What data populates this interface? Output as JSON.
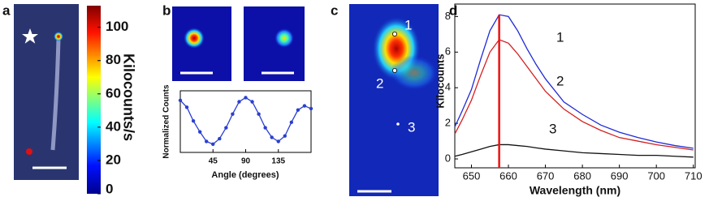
{
  "panel_labels": [
    "a",
    "b",
    "c",
    "d"
  ],
  "colorbar": {
    "label": "Kilocounts/s",
    "ylim": [
      0,
      113
    ],
    "yticks": [
      0,
      20,
      40,
      60,
      80,
      100
    ]
  },
  "panel_c_labels": [
    "1",
    "2",
    "3"
  ],
  "chart_data": [
    {
      "type": "line",
      "xlabel": "Angle (degrees)",
      "ylabel": "Normalized Counts",
      "x": [
        0,
        9,
        18,
        27,
        36,
        45,
        54,
        63,
        72,
        81,
        90,
        99,
        108,
        117,
        126,
        135,
        144,
        153,
        162,
        171,
        180
      ],
      "series": [
        {
          "color": "#2a3fd0",
          "values": [
            0.98,
            0.93,
            0.83,
            0.75,
            0.68,
            0.66,
            0.7,
            0.78,
            0.88,
            0.97,
            1.0,
            0.97,
            0.88,
            0.78,
            0.71,
            0.68,
            0.72,
            0.82,
            0.91,
            0.94,
            0.92
          ]
        }
      ],
      "xlim": [
        0,
        180
      ],
      "xticks": [
        45,
        90,
        135
      ],
      "ylim": [
        0.6,
        1.05
      ],
      "markers": true
    },
    {
      "type": "line",
      "xlabel": "Wavelength (nm)",
      "ylabel": "Kilocounts",
      "x": [
        645.5,
        647.5,
        650,
        652.5,
        655,
        657.5,
        660,
        662.5,
        665,
        667.5,
        670,
        675,
        680,
        685,
        690,
        695,
        700,
        705,
        710
      ],
      "series": [
        {
          "name": "1",
          "color": "#1f2bd6",
          "values": [
            1.8,
            2.7,
            3.9,
            5.6,
            7.2,
            8.1,
            8.0,
            7.2,
            6.2,
            5.3,
            4.5,
            3.2,
            2.5,
            1.9,
            1.5,
            1.2,
            0.95,
            0.75,
            0.6
          ]
        },
        {
          "name": "2",
          "color": "#d42020",
          "values": [
            1.4,
            2.2,
            3.3,
            4.7,
            6.0,
            6.7,
            6.5,
            5.9,
            5.2,
            4.5,
            3.8,
            2.8,
            2.1,
            1.6,
            1.2,
            1.0,
            0.8,
            0.65,
            0.5
          ]
        },
        {
          "name": "3",
          "color": "#111111",
          "values": [
            0.15,
            0.25,
            0.4,
            0.55,
            0.7,
            0.8,
            0.8,
            0.75,
            0.7,
            0.62,
            0.55,
            0.45,
            0.35,
            0.3,
            0.25,
            0.2,
            0.2,
            0.15,
            0.1
          ]
        }
      ],
      "vline": {
        "x": 657.5,
        "color": "#ee1111"
      },
      "xlim": [
        645.5,
        710.5
      ],
      "xticks": [
        650,
        660,
        670,
        680,
        690,
        700,
        710
      ],
      "ylim": [
        -0.5,
        8.7
      ],
      "yticks": [
        0,
        2,
        4,
        6,
        8
      ]
    }
  ]
}
